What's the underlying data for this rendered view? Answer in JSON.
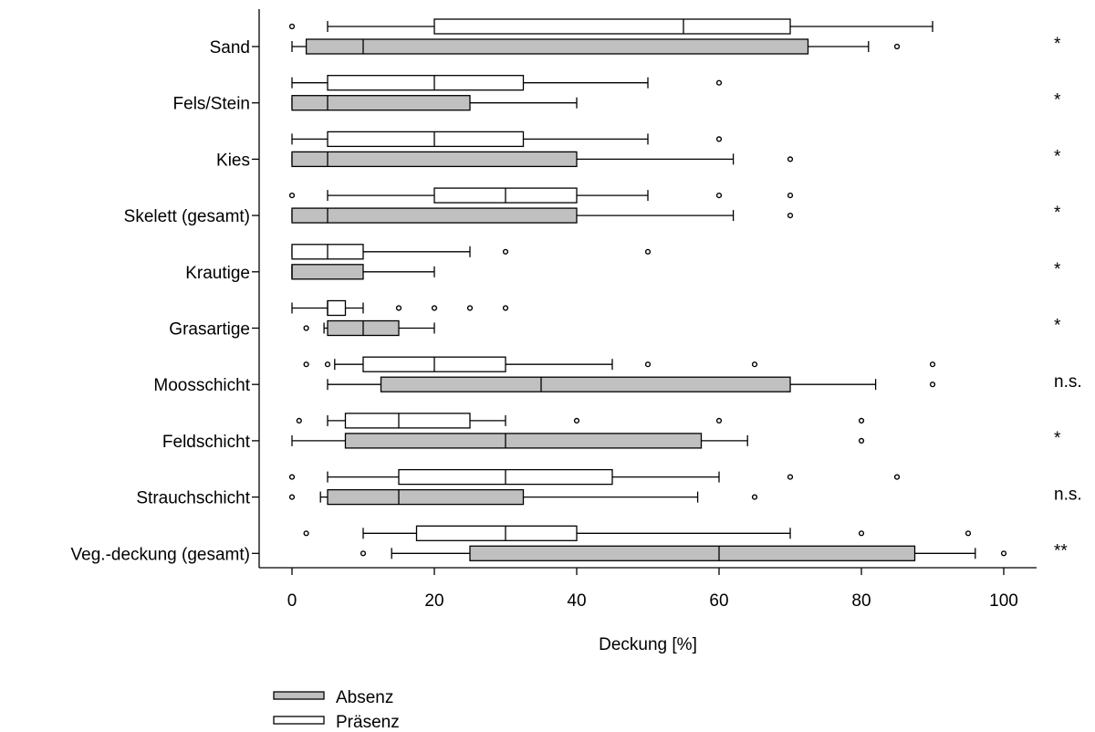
{
  "chart_data": {
    "type": "boxplot-horizontal",
    "title": "",
    "xlabel": "Deckung [%]",
    "ylabel": "",
    "xlim": [
      -5,
      105
    ],
    "x_ticks": [
      0,
      20,
      40,
      60,
      80,
      100
    ],
    "legend_position": "bottom-left",
    "grid": false,
    "series": [
      {
        "name": "Absenz",
        "color": "#c0c0c0"
      },
      {
        "name": "Präsenz",
        "color": "#ffffff"
      }
    ],
    "categories": [
      {
        "label": "Sand",
        "significance": "*",
        "praesenz": {
          "whisker_low": 5,
          "q1": 20,
          "median": 55,
          "q3": 70,
          "whisker_high": 90,
          "outliers": [
            0
          ]
        },
        "absenz": {
          "whisker_low": 0,
          "q1": 2,
          "median": 10,
          "q3": 72.5,
          "whisker_high": 81,
          "outliers": [
            85
          ]
        }
      },
      {
        "label": "Fels/Stein",
        "significance": "*",
        "praesenz": {
          "whisker_low": 0,
          "q1": 5,
          "median": 20,
          "q3": 32.5,
          "whisker_high": 50,
          "outliers": [
            60
          ]
        },
        "absenz": {
          "whisker_low": 0,
          "q1": 0,
          "median": 5,
          "q3": 25,
          "whisker_high": 40,
          "outliers": []
        }
      },
      {
        "label": "Kies",
        "significance": "*",
        "praesenz": {
          "whisker_low": 0,
          "q1": 5,
          "median": 20,
          "q3": 32.5,
          "whisker_high": 50,
          "outliers": [
            60
          ]
        },
        "absenz": {
          "whisker_low": 0,
          "q1": 0,
          "median": 5,
          "q3": 40,
          "whisker_high": 62,
          "outliers": [
            70
          ]
        }
      },
      {
        "label": "Skelett (gesamt)",
        "significance": "*",
        "praesenz": {
          "whisker_low": 5,
          "q1": 20,
          "median": 30,
          "q3": 40,
          "whisker_high": 50,
          "outliers": [
            0,
            60,
            70
          ]
        },
        "absenz": {
          "whisker_low": 0,
          "q1": 0,
          "median": 5,
          "q3": 40,
          "whisker_high": 62,
          "outliers": [
            70
          ]
        }
      },
      {
        "label": "Krautige",
        "significance": "*",
        "praesenz": {
          "whisker_low": 0,
          "q1": 0,
          "median": 5,
          "q3": 10,
          "whisker_high": 25,
          "outliers": [
            30,
            50
          ]
        },
        "absenz": {
          "whisker_low": 0,
          "q1": 0,
          "median": 0,
          "q3": 10,
          "whisker_high": 20,
          "outliers": []
        }
      },
      {
        "label": "Grasartige",
        "significance": "*",
        "praesenz": {
          "whisker_low": 0,
          "q1": 5,
          "median": 5,
          "q3": 7.5,
          "whisker_high": 10,
          "outliers": [
            15,
            20,
            25,
            30
          ]
        },
        "absenz": {
          "whisker_low": 4.5,
          "q1": 5,
          "median": 10,
          "q3": 15,
          "whisker_high": 20,
          "outliers": [
            2
          ]
        }
      },
      {
        "label": "Moosschicht",
        "significance": "n.s.",
        "praesenz": {
          "whisker_low": 6,
          "q1": 10,
          "median": 20,
          "q3": 30,
          "whisker_high": 45,
          "outliers": [
            2,
            5,
            50,
            65,
            90
          ]
        },
        "absenz": {
          "whisker_low": 5,
          "q1": 12.5,
          "median": 35,
          "q3": 70,
          "whisker_high": 82,
          "outliers": [
            90
          ]
        }
      },
      {
        "label": "Feldschicht",
        "significance": "*",
        "praesenz": {
          "whisker_low": 5,
          "q1": 7.5,
          "median": 15,
          "q3": 25,
          "whisker_high": 30,
          "outliers": [
            1,
            40,
            60,
            80
          ]
        },
        "absenz": {
          "whisker_low": 0,
          "q1": 7.5,
          "median": 30,
          "q3": 57.5,
          "whisker_high": 64,
          "outliers": [
            80
          ]
        }
      },
      {
        "label": "Strauchschicht",
        "significance": "n.s.",
        "praesenz": {
          "whisker_low": 5,
          "q1": 15,
          "median": 30,
          "q3": 45,
          "whisker_high": 60,
          "outliers": [
            0,
            70,
            85
          ]
        },
        "absenz": {
          "whisker_low": 4,
          "q1": 5,
          "median": 15,
          "q3": 32.5,
          "whisker_high": 57,
          "outliers": [
            0,
            65
          ]
        }
      },
      {
        "label": "Veg.-deckung (gesamt)",
        "significance": "**",
        "praesenz": {
          "whisker_low": 10,
          "q1": 17.5,
          "median": 30,
          "q3": 40,
          "whisker_high": 70,
          "outliers": [
            2,
            80,
            95
          ]
        },
        "absenz": {
          "whisker_low": 14,
          "q1": 25,
          "median": 60,
          "q3": 87.5,
          "whisker_high": 96,
          "outliers": [
            10,
            100
          ]
        }
      }
    ]
  }
}
